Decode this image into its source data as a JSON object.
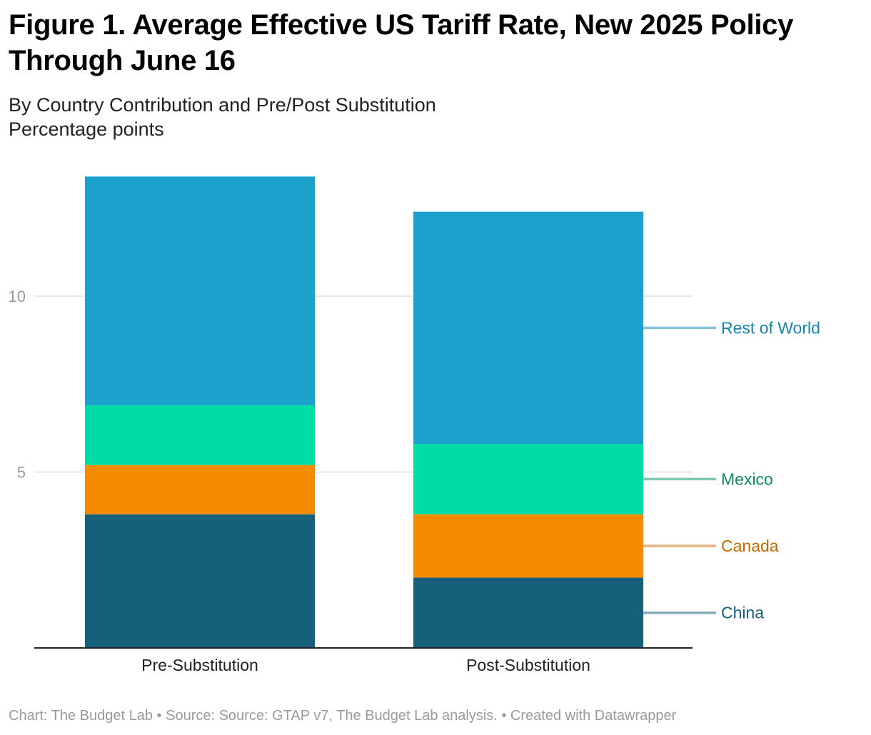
{
  "header": {
    "title": "Figure 1. Average Effective US Tariff Rate, New 2025 Policy Through June 16",
    "subtitle": "By Country Contribution and Pre/Post Substitution",
    "unit_line": "Percentage points"
  },
  "footer": {
    "credit": "Chart: The Budget Lab • Source: Source: GTAP v7, The Budget Lab analysis. • Created with Datawrapper"
  },
  "chart_data": {
    "type": "bar",
    "stacked": true,
    "title": "Figure 1. Average Effective US Tariff Rate, New 2025 Policy Through June 16",
    "subtitle": "By Country Contribution and Pre/Post Substitution",
    "ylabel": "Percentage points",
    "xlabel": "",
    "categories": [
      "Pre-Substitution",
      "Post-Substitution"
    ],
    "series": [
      {
        "name": "China",
        "values": [
          3.8,
          2.0
        ],
        "color": "#17607c",
        "label_color": "#17607c",
        "leader_color": "#86a9b8"
      },
      {
        "name": "Canada",
        "values": [
          1.4,
          1.8
        ],
        "color": "#f78b00",
        "label_color": "#c46a00",
        "leader_color": "#e3b186"
      },
      {
        "name": "Mexico",
        "values": [
          1.7,
          2.0
        ],
        "color": "#00dca6",
        "label_color": "#0f8a63",
        "leader_color": "#7fc6b0"
      },
      {
        "name": "Rest of World",
        "values": [
          6.5,
          6.6
        ],
        "color": "#1ba1cc",
        "label_color": "#1585b0",
        "leader_color": "#85c3da"
      }
    ],
    "ylim": [
      0,
      13.6
    ],
    "yticks": [
      5,
      10
    ],
    "grid": true,
    "legend": "direct labels right of last bar"
  }
}
